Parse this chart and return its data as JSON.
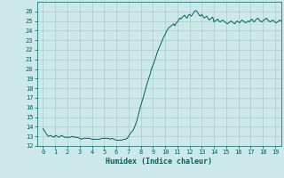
{
  "title": "",
  "xlabel": "Humidex (Indice chaleur)",
  "bg_color": "#cce8e8",
  "grid_color": "#aacccc",
  "line_color": "#006060",
  "xlim": [
    -0.5,
    19.5
  ],
  "ylim": [
    12,
    27
  ],
  "yticks": [
    12,
    13,
    14,
    15,
    16,
    17,
    18,
    19,
    20,
    21,
    22,
    23,
    24,
    25,
    26
  ],
  "xticks": [
    0,
    1,
    2,
    3,
    4,
    5,
    6,
    7,
    8,
    9,
    10,
    11,
    12,
    13,
    14,
    15,
    16,
    17,
    18,
    19
  ],
  "x": [
    0.0,
    0.15,
    0.3,
    0.45,
    0.6,
    0.75,
    0.9,
    1.0,
    1.15,
    1.3,
    1.5,
    1.65,
    1.8,
    2.0,
    2.2,
    2.4,
    2.6,
    2.8,
    3.0,
    3.15,
    3.3,
    3.5,
    3.65,
    3.8,
    4.0,
    4.2,
    4.4,
    4.5,
    4.65,
    4.8,
    5.0,
    5.2,
    5.35,
    5.5,
    5.65,
    5.8,
    6.0,
    6.15,
    6.3,
    6.45,
    6.6,
    6.75,
    6.9,
    7.0,
    7.1,
    7.2,
    7.3,
    7.4,
    7.5,
    7.6,
    7.7,
    7.8,
    7.9,
    8.0,
    8.1,
    8.2,
    8.3,
    8.4,
    8.5,
    8.6,
    8.7,
    8.8,
    8.9,
    9.0,
    9.1,
    9.2,
    9.3,
    9.4,
    9.5,
    9.6,
    9.7,
    9.8,
    9.9,
    10.0,
    10.1,
    10.2,
    10.3,
    10.4,
    10.5,
    10.6,
    10.7,
    10.8,
    10.9,
    11.0,
    11.1,
    11.2,
    11.3,
    11.4,
    11.5,
    11.6,
    11.7,
    11.8,
    11.9,
    12.0,
    12.1,
    12.2,
    12.3,
    12.4,
    12.5,
    12.6,
    12.7,
    12.8,
    12.9,
    13.0,
    13.1,
    13.2,
    13.3,
    13.4,
    13.5,
    13.6,
    13.7,
    13.8,
    13.9,
    14.0,
    14.1,
    14.2,
    14.3,
    14.4,
    14.5,
    14.6,
    14.7,
    14.8,
    14.9,
    15.0,
    15.1,
    15.2,
    15.3,
    15.4,
    15.5,
    15.6,
    15.7,
    15.8,
    15.9,
    16.0,
    16.1,
    16.2,
    16.3,
    16.4,
    16.5,
    16.6,
    16.7,
    16.8,
    16.9,
    17.0,
    17.1,
    17.2,
    17.3,
    17.4,
    17.5,
    17.6,
    17.7,
    17.8,
    17.9,
    18.0,
    18.1,
    18.2,
    18.3,
    18.4,
    18.5,
    18.6,
    18.7,
    18.8,
    18.9,
    19.0,
    19.1,
    19.2,
    19.3,
    19.4,
    19.5,
    19.6,
    19.7,
    19.8,
    19.9
  ],
  "y": [
    13.8,
    13.5,
    13.2,
    13.0,
    13.1,
    13.0,
    12.9,
    13.1,
    13.0,
    12.9,
    13.1,
    13.0,
    12.9,
    12.9,
    12.9,
    13.0,
    12.9,
    12.9,
    12.8,
    12.7,
    12.8,
    12.8,
    12.8,
    12.8,
    12.7,
    12.7,
    12.7,
    12.7,
    12.7,
    12.8,
    12.8,
    12.8,
    12.8,
    12.7,
    12.8,
    12.7,
    12.6,
    12.6,
    12.6,
    12.6,
    12.7,
    12.7,
    12.8,
    13.0,
    13.2,
    13.4,
    13.5,
    13.7,
    14.0,
    14.3,
    14.7,
    15.2,
    15.7,
    16.2,
    16.6,
    17.0,
    17.5,
    17.9,
    18.4,
    18.8,
    19.2,
    19.6,
    20.1,
    20.4,
    20.7,
    21.1,
    21.5,
    21.9,
    22.2,
    22.5,
    22.8,
    23.1,
    23.4,
    23.6,
    23.9,
    24.1,
    24.3,
    24.4,
    24.5,
    24.6,
    24.7,
    24.5,
    24.8,
    24.9,
    25.1,
    25.3,
    25.2,
    25.4,
    25.5,
    25.6,
    25.4,
    25.3,
    25.6,
    25.7,
    25.5,
    25.6,
    25.8,
    26.0,
    26.1,
    26.0,
    25.8,
    25.6,
    25.5,
    25.7,
    25.5,
    25.3,
    25.4,
    25.5,
    25.3,
    25.1,
    25.2,
    25.3,
    25.4,
    24.9,
    25.0,
    25.1,
    25.2,
    25.0,
    24.9,
    25.0,
    25.1,
    25.0,
    24.9,
    24.8,
    24.7,
    24.8,
    24.9,
    25.0,
    24.9,
    24.8,
    24.7,
    24.9,
    25.0,
    24.9,
    24.8,
    25.0,
    25.1,
    25.0,
    24.9,
    24.8,
    24.9,
    25.0,
    24.9,
    25.1,
    25.2,
    25.0,
    24.9,
    25.1,
    25.2,
    25.3,
    25.1,
    25.0,
    24.9,
    25.0,
    25.1,
    25.2,
    25.3,
    25.1,
    25.0,
    24.9,
    25.0,
    25.1,
    25.0,
    24.9,
    24.8,
    24.9,
    25.0,
    25.1,
    25.0,
    24.9,
    25.0,
    25.1,
    25.0
  ]
}
